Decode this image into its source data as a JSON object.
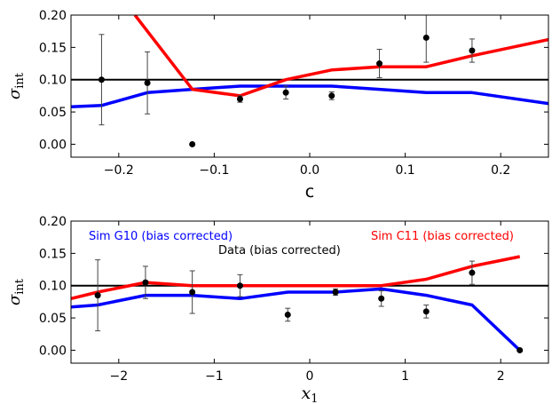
{
  "chart_data": [
    {
      "type": "scatter",
      "xlabel": "c",
      "ylabel": "σ",
      "ylabel_sub": "int",
      "xlim": [
        -0.25,
        0.25
      ],
      "ylim": [
        -0.02,
        0.2
      ],
      "xticks": [
        -0.2,
        -0.1,
        0.0,
        0.1,
        0.2
      ],
      "xtick_labels": [
        "−0.2",
        "−0.1",
        "0.0",
        "0.1",
        "0.2"
      ],
      "yticks": [
        0.0,
        0.05,
        0.1,
        0.15,
        0.2
      ],
      "ytick_labels": [
        "0.00",
        "0.05",
        "0.10",
        "0.15",
        "0.20"
      ],
      "reference_line": 0.1,
      "points": [
        {
          "x": -0.218,
          "y": 0.1,
          "yerr": 0.07
        },
        {
          "x": -0.17,
          "y": 0.095,
          "yerr": 0.048
        },
        {
          "x": -0.123,
          "y": 0.0,
          "yerr": 0.0
        },
        {
          "x": -0.073,
          "y": 0.07,
          "yerr": 0.005
        },
        {
          "x": -0.025,
          "y": 0.08,
          "yerr": 0.01
        },
        {
          "x": 0.023,
          "y": 0.075,
          "yerr": 0.006
        },
        {
          "x": 0.073,
          "y": 0.125,
          "yerr": 0.022
        },
        {
          "x": 0.122,
          "y": 0.165,
          "yerr": 0.038
        },
        {
          "x": 0.17,
          "y": 0.145,
          "yerr": 0.018
        }
      ],
      "series": [
        {
          "color": "#0000ff",
          "x": [
            -0.25,
            -0.218,
            -0.17,
            -0.123,
            -0.073,
            -0.025,
            0.023,
            0.073,
            0.122,
            0.17,
            0.25
          ],
          "y": [
            0.058,
            0.06,
            0.08,
            0.085,
            0.09,
            0.09,
            0.09,
            0.085,
            0.08,
            0.08,
            0.063
          ]
        },
        {
          "color": "#ff0000",
          "x": [
            -0.183,
            -0.17,
            -0.123,
            -0.073,
            -0.025,
            0.023,
            0.073,
            0.122,
            0.17,
            0.25
          ],
          "y": [
            0.2,
            0.175,
            0.085,
            0.075,
            0.1,
            0.115,
            0.12,
            0.12,
            0.137,
            0.162
          ]
        }
      ]
    },
    {
      "type": "scatter",
      "xlabel": "x",
      "xlabel_sub": "1",
      "ylabel": "σ",
      "ylabel_sub": "int",
      "xlim": [
        -2.5,
        2.5
      ],
      "ylim": [
        -0.02,
        0.2
      ],
      "xticks": [
        -2,
        -1,
        0,
        1,
        2
      ],
      "xtick_labels": [
        "−2",
        "−1",
        "0",
        "1",
        "2"
      ],
      "yticks": [
        0.0,
        0.05,
        0.1,
        0.15,
        0.2
      ],
      "ytick_labels": [
        "0.00",
        "0.05",
        "0.10",
        "0.15",
        "0.20"
      ],
      "reference_line": 0.1,
      "annotations": [
        {
          "text": "Sim G10 (bias corrected)",
          "color": "#0000ff"
        },
        {
          "text": "Data (bias corrected)",
          "color": "#000000"
        },
        {
          "text": "Sim C11 (bias corrected)",
          "color": "#ff0000"
        }
      ],
      "points": [
        {
          "x": -2.22,
          "y": 0.085,
          "yerr": 0.055
        },
        {
          "x": -1.72,
          "y": 0.105,
          "yerr": 0.025
        },
        {
          "x": -1.23,
          "y": 0.09,
          "yerr": 0.033
        },
        {
          "x": -0.73,
          "y": 0.1,
          "yerr": 0.017
        },
        {
          "x": -0.23,
          "y": 0.055,
          "yerr": 0.01
        },
        {
          "x": 0.27,
          "y": 0.09,
          "yerr": 0.005
        },
        {
          "x": 0.75,
          "y": 0.08,
          "yerr": 0.012
        },
        {
          "x": 1.22,
          "y": 0.06,
          "yerr": 0.01
        },
        {
          "x": 1.7,
          "y": 0.12,
          "yerr": 0.018
        },
        {
          "x": 2.2,
          "y": 0.0,
          "yerr": 0.0
        }
      ],
      "series": [
        {
          "color": "#0000ff",
          "x": [
            -2.5,
            -2.22,
            -1.72,
            -1.23,
            -0.73,
            -0.23,
            0.27,
            0.75,
            1.22,
            1.7,
            2.2
          ],
          "y": [
            0.067,
            0.07,
            0.085,
            0.085,
            0.08,
            0.09,
            0.09,
            0.095,
            0.085,
            0.07,
            0.0
          ]
        },
        {
          "color": "#ff0000",
          "x": [
            -2.5,
            -2.22,
            -1.72,
            -1.23,
            -0.73,
            -0.23,
            0.27,
            0.75,
            1.22,
            1.7,
            2.2
          ],
          "y": [
            0.08,
            0.09,
            0.105,
            0.1,
            0.1,
            0.1,
            0.1,
            0.1,
            0.11,
            0.13,
            0.145
          ]
        }
      ]
    }
  ]
}
